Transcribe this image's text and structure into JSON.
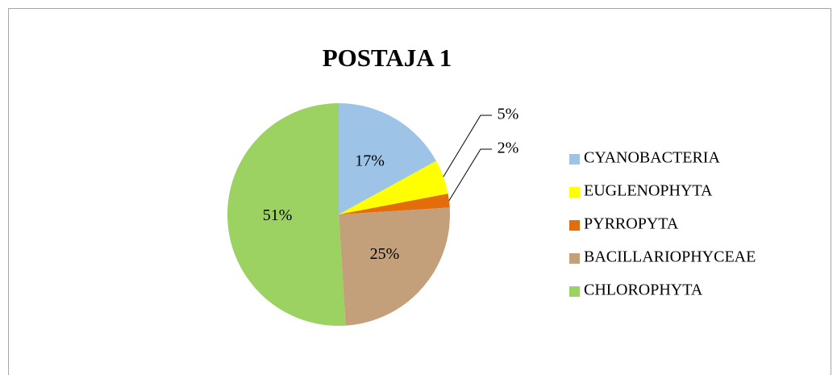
{
  "chart_data": {
    "type": "pie",
    "title": "POSTAJA 1",
    "categories": [
      "CYANOBACTERIA",
      "EUGLENOPHYTA",
      "PYRROPYTA",
      "BACILLARIOPHYCEAE",
      "CHLOROPHYTA"
    ],
    "values": [
      17,
      5,
      2,
      25,
      51
    ],
    "value_labels": [
      "17%",
      "5%",
      "2%",
      "25%",
      "51%"
    ],
    "colors": [
      "#9dc3e6",
      "#ffff00",
      "#e46c0a",
      "#c4a07a",
      "#9bd262"
    ],
    "legend": "right"
  }
}
